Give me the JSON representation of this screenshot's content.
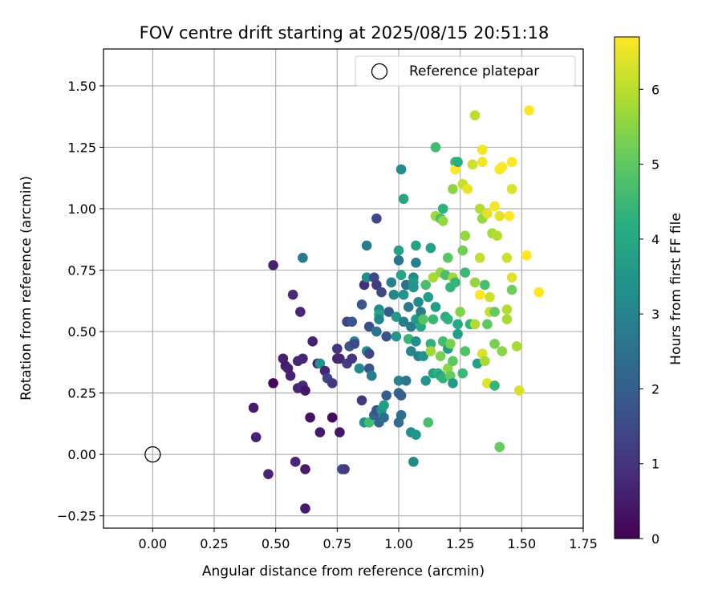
{
  "chart_data": {
    "type": "scatter",
    "title": "FOV centre drift starting at 2025/08/15 20:51:18",
    "xlabel": "Angular distance from reference (arcmin)",
    "ylabel": "Rotation from reference (arcmin)",
    "xlim": [
      -0.2,
      1.75
    ],
    "ylim": [
      -0.3,
      1.65
    ],
    "xticks": [
      "0.00",
      "0.25",
      "0.50",
      "0.75",
      "1.00",
      "1.25",
      "1.50",
      "1.75"
    ],
    "yticks": [
      "−0.25",
      "0.00",
      "0.25",
      "0.50",
      "0.75",
      "1.00",
      "1.25",
      "1.50"
    ],
    "xtick_values": [
      0,
      0.25,
      0.5,
      0.75,
      1.0,
      1.25,
      1.5,
      1.75
    ],
    "ytick_values": [
      -0.25,
      0,
      0.25,
      0.5,
      0.75,
      1.0,
      1.25,
      1.5
    ],
    "grid": true,
    "legend": {
      "location": "top-right",
      "label": "Reference platepar"
    },
    "reference_point": {
      "x": 0.0,
      "y": 0.0
    },
    "colorbar": {
      "label": "Hours from first FF file",
      "colormap": "viridis",
      "range": [
        0,
        6.7
      ],
      "ticks": [
        "0",
        "1",
        "2",
        "3",
        "4",
        "5",
        "6"
      ],
      "tick_values": [
        0,
        1,
        2,
        3,
        4,
        5,
        6
      ]
    },
    "points": [
      {
        "x": 0.49,
        "y": 0.29,
        "t": 0.1
      },
      {
        "x": 0.41,
        "y": 0.19,
        "t": 0.5
      },
      {
        "x": 0.42,
        "y": 0.07,
        "t": 0.6
      },
      {
        "x": 0.47,
        "y": -0.08,
        "t": 0.7
      },
      {
        "x": 0.49,
        "y": 0.77,
        "t": 0.6
      },
      {
        "x": 0.53,
        "y": 0.39,
        "t": 0.6
      },
      {
        "x": 0.54,
        "y": 0.36,
        "t": 0.5
      },
      {
        "x": 0.55,
        "y": 0.35,
        "t": 0.6
      },
      {
        "x": 0.56,
        "y": 0.32,
        "t": 0.6
      },
      {
        "x": 0.57,
        "y": 0.65,
        "t": 0.8
      },
      {
        "x": 0.58,
        "y": -0.03,
        "t": 0.7
      },
      {
        "x": 0.59,
        "y": 0.38,
        "t": 0.7
      },
      {
        "x": 0.59,
        "y": 0.27,
        "t": 0.7
      },
      {
        "x": 0.6,
        "y": 0.58,
        "t": 0.7
      },
      {
        "x": 0.61,
        "y": 0.39,
        "t": 0.7
      },
      {
        "x": 0.62,
        "y": -0.06,
        "t": 0.5
      },
      {
        "x": 0.62,
        "y": -0.22,
        "t": 0.5
      },
      {
        "x": 0.61,
        "y": 0.28,
        "t": 0.8
      },
      {
        "x": 0.61,
        "y": 0.8,
        "t": 2.8
      },
      {
        "x": 0.62,
        "y": 0.26,
        "t": 0.4
      },
      {
        "x": 0.64,
        "y": 0.15,
        "t": 0.3
      },
      {
        "x": 0.65,
        "y": 0.46,
        "t": 0.6
      },
      {
        "x": 0.67,
        "y": 0.37,
        "t": 0.6
      },
      {
        "x": 0.68,
        "y": 0.09,
        "t": 0.5
      },
      {
        "x": 0.68,
        "y": 0.37,
        "t": 3.4
      },
      {
        "x": 0.7,
        "y": 0.34,
        "t": 0.7
      },
      {
        "x": 0.71,
        "y": 0.31,
        "t": 1.4
      },
      {
        "x": 0.73,
        "y": 0.15,
        "t": 0.2
      },
      {
        "x": 0.73,
        "y": 0.29,
        "t": 1.1
      },
      {
        "x": 0.75,
        "y": 0.43,
        "t": 1.0
      },
      {
        "x": 0.75,
        "y": 0.39,
        "t": 0.6
      },
      {
        "x": 0.76,
        "y": 0.39,
        "t": 0.7
      },
      {
        "x": 0.76,
        "y": 0.09,
        "t": 0.4
      },
      {
        "x": 0.77,
        "y": -0.06,
        "t": 1.6
      },
      {
        "x": 0.78,
        "y": -0.06,
        "t": 1.2
      },
      {
        "x": 0.79,
        "y": 0.37,
        "t": 1.2
      },
      {
        "x": 0.79,
        "y": 0.54,
        "t": 1.4
      },
      {
        "x": 0.8,
        "y": 0.44,
        "t": 1.8
      },
      {
        "x": 0.81,
        "y": 0.54,
        "t": 1.8
      },
      {
        "x": 0.81,
        "y": 0.39,
        "t": 1.0
      },
      {
        "x": 0.82,
        "y": 0.46,
        "t": 3.2
      },
      {
        "x": 0.82,
        "y": 0.45,
        "t": 1.5
      },
      {
        "x": 0.84,
        "y": 0.35,
        "t": 3.1
      },
      {
        "x": 0.85,
        "y": 0.22,
        "t": 1.1
      },
      {
        "x": 0.85,
        "y": 0.61,
        "t": 1.8
      },
      {
        "x": 0.86,
        "y": 0.69,
        "t": 0.9
      },
      {
        "x": 0.86,
        "y": 0.13,
        "t": 3.4
      },
      {
        "x": 0.87,
        "y": 0.72,
        "t": 3.2
      },
      {
        "x": 0.87,
        "y": 0.85,
        "t": 2.8
      },
      {
        "x": 0.87,
        "y": 0.42,
        "t": 3.2
      },
      {
        "x": 0.88,
        "y": 0.52,
        "t": 1.6
      },
      {
        "x": 0.88,
        "y": 0.35,
        "t": 1.8
      },
      {
        "x": 0.88,
        "y": 0.41,
        "t": 1.4
      },
      {
        "x": 0.88,
        "y": 0.13,
        "t": 4.6
      },
      {
        "x": 0.89,
        "y": 0.32,
        "t": 2.9
      },
      {
        "x": 0.9,
        "y": 0.72,
        "t": 1.5
      },
      {
        "x": 0.9,
        "y": 0.16,
        "t": 2.2
      },
      {
        "x": 0.91,
        "y": 0.69,
        "t": 1.2
      },
      {
        "x": 0.91,
        "y": 0.5,
        "t": 2.6
      },
      {
        "x": 0.91,
        "y": 0.18,
        "t": 1.7
      },
      {
        "x": 0.91,
        "y": 0.96,
        "t": 1.5
      },
      {
        "x": 0.92,
        "y": 0.59,
        "t": 3.2
      },
      {
        "x": 0.92,
        "y": 0.57,
        "t": 3.9
      },
      {
        "x": 0.92,
        "y": 0.13,
        "t": 2.2
      },
      {
        "x": 0.92,
        "y": 0.55,
        "t": 3.0
      },
      {
        "x": 0.93,
        "y": 0.66,
        "t": 1.4
      },
      {
        "x": 0.93,
        "y": 0.18,
        "t": 3.5
      },
      {
        "x": 0.94,
        "y": 0.15,
        "t": 2.4
      },
      {
        "x": 0.94,
        "y": 0.2,
        "t": 3.7
      },
      {
        "x": 0.95,
        "y": 0.48,
        "t": 1.7
      },
      {
        "x": 0.95,
        "y": 0.24,
        "t": 2.0
      },
      {
        "x": 0.96,
        "y": 0.58,
        "t": 1.9
      },
      {
        "x": 0.97,
        "y": 0.7,
        "t": 2.9
      },
      {
        "x": 0.98,
        "y": 0.65,
        "t": 3.0
      },
      {
        "x": 0.99,
        "y": 0.56,
        "t": 3.6
      },
      {
        "x": 0.99,
        "y": 0.48,
        "t": 3.5
      },
      {
        "x": 1.0,
        "y": 0.83,
        "t": 3.8
      },
      {
        "x": 1.0,
        "y": 0.79,
        "t": 2.6
      },
      {
        "x": 1.0,
        "y": 0.3,
        "t": 3.0
      },
      {
        "x": 1.0,
        "y": 0.25,
        "t": 2.2
      },
      {
        "x": 1.0,
        "y": 0.13,
        "t": 2.4
      },
      {
        "x": 1.01,
        "y": 0.73,
        "t": 3.9
      },
      {
        "x": 1.01,
        "y": 1.16,
        "t": 3.2
      },
      {
        "x": 1.01,
        "y": 0.24,
        "t": 2.0
      },
      {
        "x": 1.01,
        "y": 0.16,
        "t": 2.4
      },
      {
        "x": 1.02,
        "y": 0.65,
        "t": 3.4
      },
      {
        "x": 1.02,
        "y": 0.54,
        "t": 2.8
      },
      {
        "x": 1.02,
        "y": 1.04,
        "t": 3.9
      },
      {
        "x": 1.03,
        "y": 0.69,
        "t": 2.5
      },
      {
        "x": 1.03,
        "y": 0.3,
        "t": 2.6
      },
      {
        "x": 1.04,
        "y": 0.6,
        "t": 2.7
      },
      {
        "x": 1.04,
        "y": 0.47,
        "t": 4.4
      },
      {
        "x": 1.05,
        "y": 0.09,
        "t": 3.3
      },
      {
        "x": 1.05,
        "y": 0.52,
        "t": 2.7
      },
      {
        "x": 1.05,
        "y": 0.42,
        "t": 3.0
      },
      {
        "x": 1.06,
        "y": 0.72,
        "t": 3.1
      },
      {
        "x": 1.06,
        "y": 0.7,
        "t": 3.6
      },
      {
        "x": 1.06,
        "y": 0.68,
        "t": 3.5
      },
      {
        "x": 1.06,
        "y": -0.03,
        "t": 3.2
      },
      {
        "x": 1.07,
        "y": 0.85,
        "t": 3.8
      },
      {
        "x": 1.07,
        "y": 0.08,
        "t": 3.5
      },
      {
        "x": 1.07,
        "y": 0.78,
        "t": 2.9
      },
      {
        "x": 1.07,
        "y": 0.55,
        "t": 3.6
      },
      {
        "x": 1.07,
        "y": 0.46,
        "t": 3.3
      },
      {
        "x": 1.08,
        "y": 0.4,
        "t": 2.9
      },
      {
        "x": 1.08,
        "y": 0.62,
        "t": 3.1
      },
      {
        "x": 1.09,
        "y": 0.52,
        "t": 4.0
      },
      {
        "x": 1.09,
        "y": 0.58,
        "t": 2.8
      },
      {
        "x": 1.1,
        "y": 0.4,
        "t": 3.4
      },
      {
        "x": 1.1,
        "y": 0.55,
        "t": 4.9
      },
      {
        "x": 1.11,
        "y": 0.69,
        "t": 4.7
      },
      {
        "x": 1.11,
        "y": 0.3,
        "t": 3.5
      },
      {
        "x": 1.12,
        "y": 0.64,
        "t": 3.7
      },
      {
        "x": 1.12,
        "y": 0.13,
        "t": 4.7
      },
      {
        "x": 1.13,
        "y": 0.45,
        "t": 4.3
      },
      {
        "x": 1.13,
        "y": 0.42,
        "t": 5.7
      },
      {
        "x": 1.13,
        "y": 0.84,
        "t": 3.8
      },
      {
        "x": 1.14,
        "y": 0.72,
        "t": 5.8
      },
      {
        "x": 1.14,
        "y": 0.55,
        "t": 4.5
      },
      {
        "x": 1.14,
        "y": 0.33,
        "t": 3.8
      },
      {
        "x": 1.15,
        "y": 1.25,
        "t": 4.6
      },
      {
        "x": 1.15,
        "y": 0.97,
        "t": 5.7
      },
      {
        "x": 1.15,
        "y": 0.6,
        "t": 3.7
      },
      {
        "x": 1.16,
        "y": 0.33,
        "t": 4.3
      },
      {
        "x": 1.17,
        "y": 0.74,
        "t": 5.6
      },
      {
        "x": 1.17,
        "y": 0.96,
        "t": 4.7
      },
      {
        "x": 1.17,
        "y": 0.4,
        "t": 5.3
      },
      {
        "x": 1.17,
        "y": 0.32,
        "t": 3.9
      },
      {
        "x": 1.18,
        "y": 0.46,
        "t": 4.6
      },
      {
        "x": 1.18,
        "y": 0.95,
        "t": 5.6
      },
      {
        "x": 1.18,
        "y": 0.31,
        "t": 4.3
      },
      {
        "x": 1.18,
        "y": 1.0,
        "t": 4.3
      },
      {
        "x": 1.19,
        "y": 0.56,
        "t": 4.1
      },
      {
        "x": 1.19,
        "y": 0.73,
        "t": 4.7
      },
      {
        "x": 1.2,
        "y": 0.8,
        "t": 4.9
      },
      {
        "x": 1.2,
        "y": 0.43,
        "t": 3.7
      },
      {
        "x": 1.2,
        "y": 0.55,
        "t": 4.3
      },
      {
        "x": 1.2,
        "y": 0.35,
        "t": 5.5
      },
      {
        "x": 1.21,
        "y": 0.32,
        "t": 5.1
      },
      {
        "x": 1.21,
        "y": 0.45,
        "t": 5.3
      },
      {
        "x": 1.21,
        "y": 0.68,
        "t": 4.4
      },
      {
        "x": 1.22,
        "y": 0.72,
        "t": 5.7
      },
      {
        "x": 1.22,
        "y": 1.08,
        "t": 5.5
      },
      {
        "x": 1.22,
        "y": 0.29,
        "t": 3.6
      },
      {
        "x": 1.22,
        "y": 0.38,
        "t": 5.0
      },
      {
        "x": 1.23,
        "y": 0.7,
        "t": 4.4
      },
      {
        "x": 1.23,
        "y": 1.19,
        "t": 4.5
      },
      {
        "x": 1.23,
        "y": 1.16,
        "t": 6.7
      },
      {
        "x": 1.24,
        "y": 0.49,
        "t": 3.7
      },
      {
        "x": 1.24,
        "y": 0.53,
        "t": 4.0
      },
      {
        "x": 1.24,
        "y": 1.19,
        "t": 4.2
      },
      {
        "x": 1.25,
        "y": 0.58,
        "t": 5.4
      },
      {
        "x": 1.26,
        "y": 0.33,
        "t": 4.5
      },
      {
        "x": 1.26,
        "y": 1.1,
        "t": 6.1
      },
      {
        "x": 1.26,
        "y": 0.83,
        "t": 5.2
      },
      {
        "x": 1.27,
        "y": 0.74,
        "t": 4.5
      },
      {
        "x": 1.27,
        "y": 0.42,
        "t": 4.8
      },
      {
        "x": 1.27,
        "y": 0.89,
        "t": 5.6
      },
      {
        "x": 1.28,
        "y": 1.08,
        "t": 6.5
      },
      {
        "x": 1.29,
        "y": 0.53,
        "t": 4.3
      },
      {
        "x": 1.3,
        "y": 1.18,
        "t": 6.2
      },
      {
        "x": 1.31,
        "y": 1.38,
        "t": 6.0
      },
      {
        "x": 1.31,
        "y": 0.7,
        "t": 5.6
      },
      {
        "x": 1.31,
        "y": 0.53,
        "t": 5.9
      },
      {
        "x": 1.32,
        "y": 0.37,
        "t": 3.8
      },
      {
        "x": 1.33,
        "y": 0.65,
        "t": 6.7
      },
      {
        "x": 1.33,
        "y": 1.0,
        "t": 5.9
      },
      {
        "x": 1.33,
        "y": 0.8,
        "t": 6.1
      },
      {
        "x": 1.34,
        "y": 1.24,
        "t": 6.6
      },
      {
        "x": 1.34,
        "y": 1.19,
        "t": 6.6
      },
      {
        "x": 1.34,
        "y": 0.96,
        "t": 5.6
      },
      {
        "x": 1.34,
        "y": 0.41,
        "t": 6.3
      },
      {
        "x": 1.35,
        "y": 0.38,
        "t": 5.8
      },
      {
        "x": 1.35,
        "y": 0.69,
        "t": 4.7
      },
      {
        "x": 1.36,
        "y": 0.53,
        "t": 5.0
      },
      {
        "x": 1.36,
        "y": 0.29,
        "t": 6.4
      },
      {
        "x": 1.36,
        "y": 0.98,
        "t": 6.4
      },
      {
        "x": 1.37,
        "y": 0.58,
        "t": 6.1
      },
      {
        "x": 1.37,
        "y": 0.64,
        "t": 6.2
      },
      {
        "x": 1.38,
        "y": 0.9,
        "t": 5.8
      },
      {
        "x": 1.39,
        "y": 0.45,
        "t": 5.3
      },
      {
        "x": 1.39,
        "y": 1.01,
        "t": 6.6
      },
      {
        "x": 1.39,
        "y": 0.58,
        "t": 5.1
      },
      {
        "x": 1.39,
        "y": 0.28,
        "t": 4.4
      },
      {
        "x": 1.4,
        "y": 0.89,
        "t": 5.9
      },
      {
        "x": 1.41,
        "y": 0.97,
        "t": 6.4
      },
      {
        "x": 1.41,
        "y": 1.16,
        "t": 6.7
      },
      {
        "x": 1.41,
        "y": 0.03,
        "t": 5.1
      },
      {
        "x": 1.42,
        "y": 0.42,
        "t": 5.5
      },
      {
        "x": 1.42,
        "y": 1.17,
        "t": 6.7
      },
      {
        "x": 1.44,
        "y": 0.55,
        "t": 5.8
      },
      {
        "x": 1.44,
        "y": 0.59,
        "t": 5.9
      },
      {
        "x": 1.44,
        "y": 0.8,
        "t": 6.2
      },
      {
        "x": 1.45,
        "y": 0.97,
        "t": 6.7
      },
      {
        "x": 1.46,
        "y": 0.72,
        "t": 6.4
      },
      {
        "x": 1.46,
        "y": 0.67,
        "t": 5.2
      },
      {
        "x": 1.46,
        "y": 1.19,
        "t": 6.7
      },
      {
        "x": 1.46,
        "y": 1.08,
        "t": 6.3
      },
      {
        "x": 1.48,
        "y": 0.44,
        "t": 5.8
      },
      {
        "x": 1.49,
        "y": 0.26,
        "t": 6.3
      },
      {
        "x": 1.52,
        "y": 0.81,
        "t": 6.7
      },
      {
        "x": 1.53,
        "y": 1.4,
        "t": 6.7
      },
      {
        "x": 1.57,
        "y": 0.66,
        "t": 6.7
      }
    ]
  }
}
